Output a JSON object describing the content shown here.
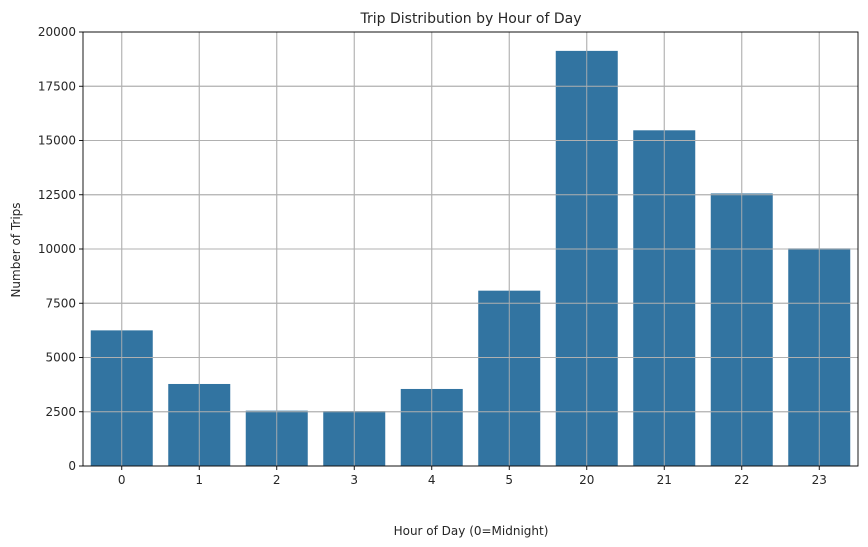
{
  "chart_data": {
    "type": "bar",
    "title": "Trip Distribution by Hour of Day",
    "xlabel": "Hour of Day (0=Midnight)",
    "ylabel": "Number of Trips",
    "categories": [
      "0",
      "1",
      "2",
      "3",
      "4",
      "5",
      "20",
      "21",
      "22",
      "23"
    ],
    "values": [
      6250,
      3780,
      2550,
      2530,
      3550,
      8080,
      19130,
      15470,
      12560,
      10030
    ],
    "ylim": [
      0,
      20000
    ],
    "yticks": [
      "0",
      "2500",
      "5000",
      "7500",
      "10000",
      "12500",
      "15000",
      "17500",
      "20000"
    ],
    "ytick_values": [
      0,
      2500,
      5000,
      7500,
      10000,
      12500,
      15000,
      17500,
      20000
    ],
    "grid": true,
    "bar_color": "#3274a1",
    "grid_color": "#b0b0b0"
  }
}
